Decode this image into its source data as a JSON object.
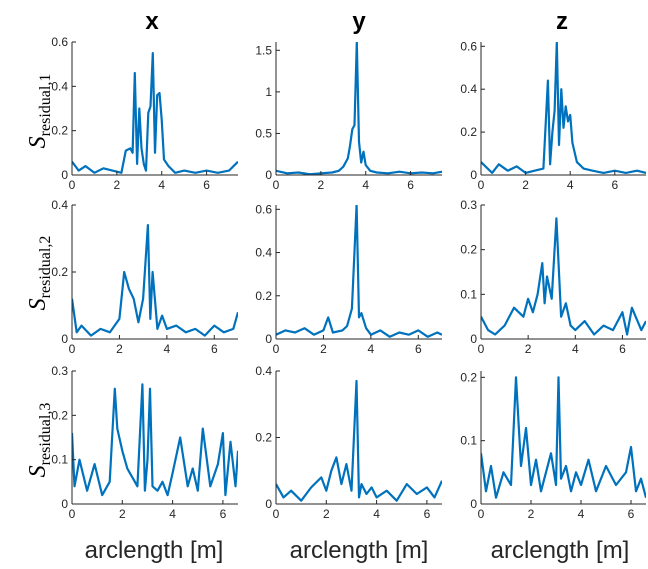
{
  "figure": {
    "column_titles": [
      "x",
      "y",
      "z"
    ],
    "row_ylabels": [
      {
        "main": "S",
        "sub": "residual,1"
      },
      {
        "main": "S",
        "sub": "residual,2"
      },
      {
        "main": "S",
        "sub": "residual,3"
      }
    ],
    "xlabel": "arclength [m]",
    "line_color": "#0072BD"
  },
  "chart_data": [
    {
      "type": "line",
      "row": 1,
      "col": "x",
      "xlim": [
        0,
        7.4
      ],
      "ylim": [
        0,
        0.6
      ],
      "xticks": [
        0,
        2,
        4,
        6
      ],
      "yticks": [
        0,
        0.2,
        0.4,
        0.6
      ],
      "ytick_labels": [
        "0",
        "0.2",
        "0.4",
        "0.6"
      ],
      "series": [
        {
          "x": [
            0,
            0.3,
            0.6,
            1.0,
            1.4,
            1.8,
            2.2,
            2.4,
            2.6,
            2.7,
            2.8,
            2.9,
            3.0,
            3.1,
            3.2,
            3.3,
            3.4,
            3.5,
            3.6,
            3.7,
            3.8,
            3.9,
            4.0,
            4.1,
            4.3,
            4.6,
            5.0,
            5.5,
            6.0,
            6.5,
            7.0,
            7.4
          ],
          "y": [
            0.06,
            0.02,
            0.04,
            0.01,
            0.03,
            0.02,
            0.01,
            0.11,
            0.12,
            0.1,
            0.46,
            0.05,
            0.3,
            0.12,
            0.05,
            0.02,
            0.28,
            0.31,
            0.55,
            0.1,
            0.36,
            0.37,
            0.25,
            0.07,
            0.04,
            0.01,
            0.02,
            0.01,
            0.02,
            0.01,
            0.02,
            0.06
          ]
        }
      ]
    },
    {
      "type": "line",
      "row": 1,
      "col": "y",
      "xlim": [
        0,
        7.4
      ],
      "ylim": [
        0,
        1.6
      ],
      "xticks": [
        0,
        2,
        4,
        6
      ],
      "yticks": [
        0,
        0.5,
        1,
        1.5
      ],
      "ytick_labels": [
        "0",
        "0.5",
        "1",
        "1.5"
      ],
      "series": [
        {
          "x": [
            0,
            0.5,
            1.0,
            1.5,
            2.0,
            2.5,
            2.8,
            3.0,
            3.2,
            3.3,
            3.4,
            3.5,
            3.6,
            3.7,
            3.8,
            3.9,
            4.0,
            4.2,
            4.5,
            5.0,
            5.5,
            6.0,
            6.5,
            7.0,
            7.4
          ],
          "y": [
            0.05,
            0.02,
            0.03,
            0.01,
            0.02,
            0.03,
            0.05,
            0.1,
            0.2,
            0.35,
            0.55,
            0.6,
            1.6,
            0.4,
            0.15,
            0.28,
            0.12,
            0.05,
            0.03,
            0.02,
            0.04,
            0.02,
            0.03,
            0.02,
            0.04
          ]
        }
      ]
    },
    {
      "type": "line",
      "row": 1,
      "col": "z",
      "xlim": [
        0,
        7.4
      ],
      "ylim": [
        0,
        0.62
      ],
      "xticks": [
        0,
        2,
        4,
        6
      ],
      "yticks": [
        0,
        0.2,
        0.4,
        0.6
      ],
      "ytick_labels": [
        "0",
        "0.2",
        "0.4",
        "0.6"
      ],
      "series": [
        {
          "x": [
            0,
            0.2,
            0.5,
            0.8,
            1.2,
            1.6,
            2.0,
            2.4,
            2.8,
            3.0,
            3.1,
            3.2,
            3.3,
            3.4,
            3.5,
            3.6,
            3.7,
            3.8,
            3.9,
            4.0,
            4.1,
            4.3,
            4.6,
            5.0,
            5.5,
            6.0,
            6.5,
            7.0,
            7.4
          ],
          "y": [
            0.06,
            0.04,
            0.01,
            0.05,
            0.02,
            0.04,
            0.01,
            0.02,
            0.03,
            0.44,
            0.05,
            0.2,
            0.3,
            0.62,
            0.14,
            0.4,
            0.22,
            0.32,
            0.25,
            0.28,
            0.15,
            0.06,
            0.03,
            0.02,
            0.01,
            0.02,
            0.01,
            0.02,
            0.01
          ]
        }
      ]
    },
    {
      "type": "line",
      "row": 2,
      "col": "x",
      "xlim": [
        0,
        7.0
      ],
      "ylim": [
        0,
        0.4
      ],
      "xticks": [
        0,
        2,
        4,
        6
      ],
      "yticks": [
        0,
        0.2,
        0.4
      ],
      "ytick_labels": [
        "0",
        "0.2",
        "0.4"
      ],
      "series": [
        {
          "x": [
            0,
            0.2,
            0.4,
            0.8,
            1.2,
            1.6,
            2.0,
            2.2,
            2.4,
            2.6,
            2.8,
            3.0,
            3.2,
            3.3,
            3.4,
            3.6,
            3.8,
            4.0,
            4.4,
            4.8,
            5.2,
            5.6,
            6.0,
            6.4,
            6.8,
            7.0
          ],
          "y": [
            0.12,
            0.02,
            0.04,
            0.01,
            0.03,
            0.02,
            0.06,
            0.2,
            0.15,
            0.12,
            0.05,
            0.12,
            0.34,
            0.06,
            0.2,
            0.03,
            0.07,
            0.03,
            0.04,
            0.02,
            0.03,
            0.01,
            0.04,
            0.02,
            0.03,
            0.08
          ]
        }
      ]
    },
    {
      "type": "line",
      "row": 2,
      "col": "y",
      "xlim": [
        0,
        7.0
      ],
      "ylim": [
        0,
        0.62
      ],
      "xticks": [
        0,
        2,
        4,
        6
      ],
      "yticks": [
        0,
        0.2,
        0.4,
        0.6
      ],
      "ytick_labels": [
        "0",
        "0.2",
        "0.4",
        "0.6"
      ],
      "series": [
        {
          "x": [
            0,
            0.4,
            0.8,
            1.2,
            1.6,
            2.0,
            2.2,
            2.4,
            2.8,
            3.0,
            3.2,
            3.4,
            3.5,
            3.6,
            3.8,
            4.0,
            4.4,
            4.8,
            5.2,
            5.6,
            6.0,
            6.4,
            6.8,
            7.0
          ],
          "y": [
            0.02,
            0.04,
            0.03,
            0.05,
            0.02,
            0.04,
            0.1,
            0.03,
            0.04,
            0.06,
            0.14,
            0.62,
            0.1,
            0.12,
            0.05,
            0.02,
            0.04,
            0.01,
            0.03,
            0.02,
            0.04,
            0.01,
            0.03,
            0.02
          ]
        }
      ]
    },
    {
      "type": "line",
      "row": 2,
      "col": "z",
      "xlim": [
        0,
        7.0
      ],
      "ylim": [
        0,
        0.3
      ],
      "xticks": [
        0,
        2,
        4,
        6
      ],
      "yticks": [
        0,
        0.1,
        0.2,
        0.3
      ],
      "ytick_labels": [
        "0",
        "0.1",
        "0.2",
        "0.3"
      ],
      "series": [
        {
          "x": [
            0,
            0.3,
            0.6,
            1.0,
            1.4,
            1.8,
            2.0,
            2.2,
            2.4,
            2.6,
            2.7,
            2.8,
            3.0,
            3.2,
            3.4,
            3.6,
            3.8,
            4.0,
            4.4,
            4.8,
            5.2,
            5.6,
            6.0,
            6.2,
            6.4,
            6.8,
            7.0
          ],
          "y": [
            0.05,
            0.02,
            0.01,
            0.03,
            0.07,
            0.05,
            0.09,
            0.06,
            0.1,
            0.17,
            0.08,
            0.14,
            0.09,
            0.27,
            0.05,
            0.08,
            0.03,
            0.02,
            0.04,
            0.01,
            0.03,
            0.02,
            0.06,
            0.01,
            0.07,
            0.02,
            0.04
          ]
        }
      ]
    },
    {
      "type": "line",
      "row": 3,
      "col": "x",
      "xlim": [
        0,
        6.6
      ],
      "ylim": [
        0,
        0.3
      ],
      "xticks": [
        0,
        2,
        4,
        6
      ],
      "yticks": [
        0,
        0.1,
        0.2,
        0.3
      ],
      "ytick_labels": [
        "0",
        "0.1",
        "0.2",
        "0.3"
      ],
      "series": [
        {
          "x": [
            0,
            0.1,
            0.3,
            0.6,
            0.9,
            1.2,
            1.5,
            1.7,
            1.8,
            2.0,
            2.2,
            2.4,
            2.6,
            2.8,
            2.9,
            3.0,
            3.1,
            3.2,
            3.4,
            3.6,
            3.8,
            4.0,
            4.3,
            4.6,
            4.8,
            5.0,
            5.2,
            5.5,
            5.8,
            6.0,
            6.1,
            6.3,
            6.5,
            6.6
          ],
          "y": [
            0.16,
            0.04,
            0.1,
            0.03,
            0.09,
            0.02,
            0.05,
            0.26,
            0.17,
            0.12,
            0.08,
            0.06,
            0.04,
            0.27,
            0.03,
            0.1,
            0.26,
            0.04,
            0.03,
            0.05,
            0.02,
            0.07,
            0.15,
            0.04,
            0.08,
            0.03,
            0.17,
            0.04,
            0.09,
            0.16,
            0.02,
            0.14,
            0.04,
            0.12
          ]
        }
      ]
    },
    {
      "type": "line",
      "row": 3,
      "col": "y",
      "xlim": [
        0,
        6.6
      ],
      "ylim": [
        0,
        0.4
      ],
      "xticks": [
        0,
        2,
        4,
        6
      ],
      "yticks": [
        0,
        0.2,
        0.4
      ],
      "ytick_labels": [
        "0",
        "0.2",
        "0.4"
      ],
      "series": [
        {
          "x": [
            0,
            0.3,
            0.6,
            1.0,
            1.4,
            1.8,
            2.0,
            2.2,
            2.4,
            2.6,
            2.8,
            3.0,
            3.2,
            3.3,
            3.4,
            3.6,
            3.8,
            4.0,
            4.4,
            4.8,
            5.2,
            5.6,
            6.0,
            6.3,
            6.6
          ],
          "y": [
            0.06,
            0.02,
            0.04,
            0.01,
            0.05,
            0.08,
            0.04,
            0.1,
            0.14,
            0.06,
            0.12,
            0.04,
            0.37,
            0.02,
            0.06,
            0.03,
            0.05,
            0.02,
            0.04,
            0.01,
            0.06,
            0.03,
            0.05,
            0.02,
            0.07
          ]
        }
      ]
    },
    {
      "type": "line",
      "row": 3,
      "col": "z",
      "xlim": [
        0,
        6.6
      ],
      "ylim": [
        0,
        0.21
      ],
      "xticks": [
        0,
        2,
        4,
        6
      ],
      "yticks": [
        0,
        0.1,
        0.2
      ],
      "ytick_labels": [
        "0",
        "0.1",
        "0.2"
      ],
      "series": [
        {
          "x": [
            0,
            0.2,
            0.4,
            0.6,
            0.9,
            1.2,
            1.4,
            1.6,
            1.8,
            2.0,
            2.2,
            2.4,
            2.6,
            2.8,
            3.0,
            3.1,
            3.2,
            3.4,
            3.6,
            3.8,
            4.0,
            4.3,
            4.6,
            5.0,
            5.4,
            5.8,
            6.0,
            6.2,
            6.4,
            6.6
          ],
          "y": [
            0.08,
            0.02,
            0.06,
            0.01,
            0.05,
            0.03,
            0.2,
            0.06,
            0.12,
            0.03,
            0.07,
            0.02,
            0.05,
            0.08,
            0.03,
            0.2,
            0.04,
            0.06,
            0.02,
            0.05,
            0.03,
            0.07,
            0.02,
            0.06,
            0.03,
            0.05,
            0.09,
            0.02,
            0.04,
            0.01
          ]
        }
      ]
    }
  ]
}
